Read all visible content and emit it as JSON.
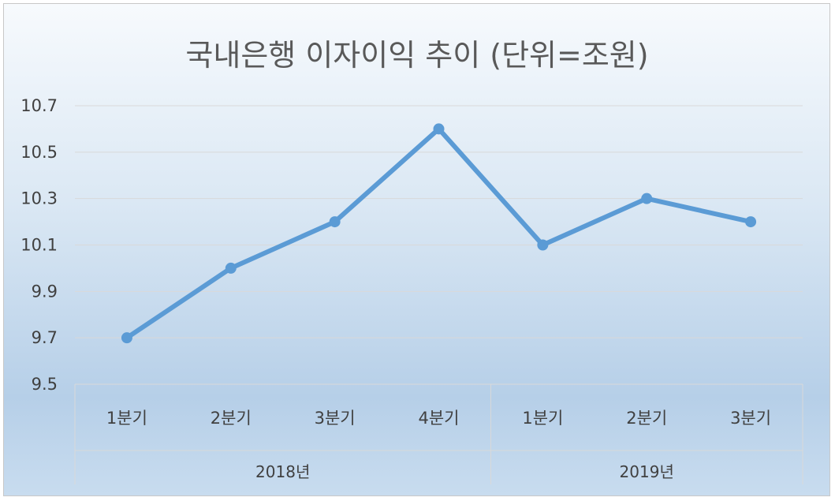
{
  "chart_data": {
    "type": "line",
    "title": "국내은행 이자이익 추이 (단위=조원)",
    "categories": [
      "1분기",
      "2분기",
      "3분기",
      "4분기",
      "1분기",
      "2분기",
      "3분기"
    ],
    "groups": [
      {
        "label": "2018년",
        "count": 4
      },
      {
        "label": "2019년",
        "count": 3
      }
    ],
    "series": [
      {
        "values": [
          9.7,
          10.0,
          10.2,
          10.6,
          10.1,
          10.3,
          10.2
        ],
        "color": "#5b9bd5"
      }
    ],
    "ylim": [
      9.5,
      10.7
    ],
    "yticks": [
      "9.5",
      "9.7",
      "9.9",
      "10.1",
      "10.3",
      "10.5",
      "10.7"
    ],
    "grid": true,
    "legend": "none"
  }
}
